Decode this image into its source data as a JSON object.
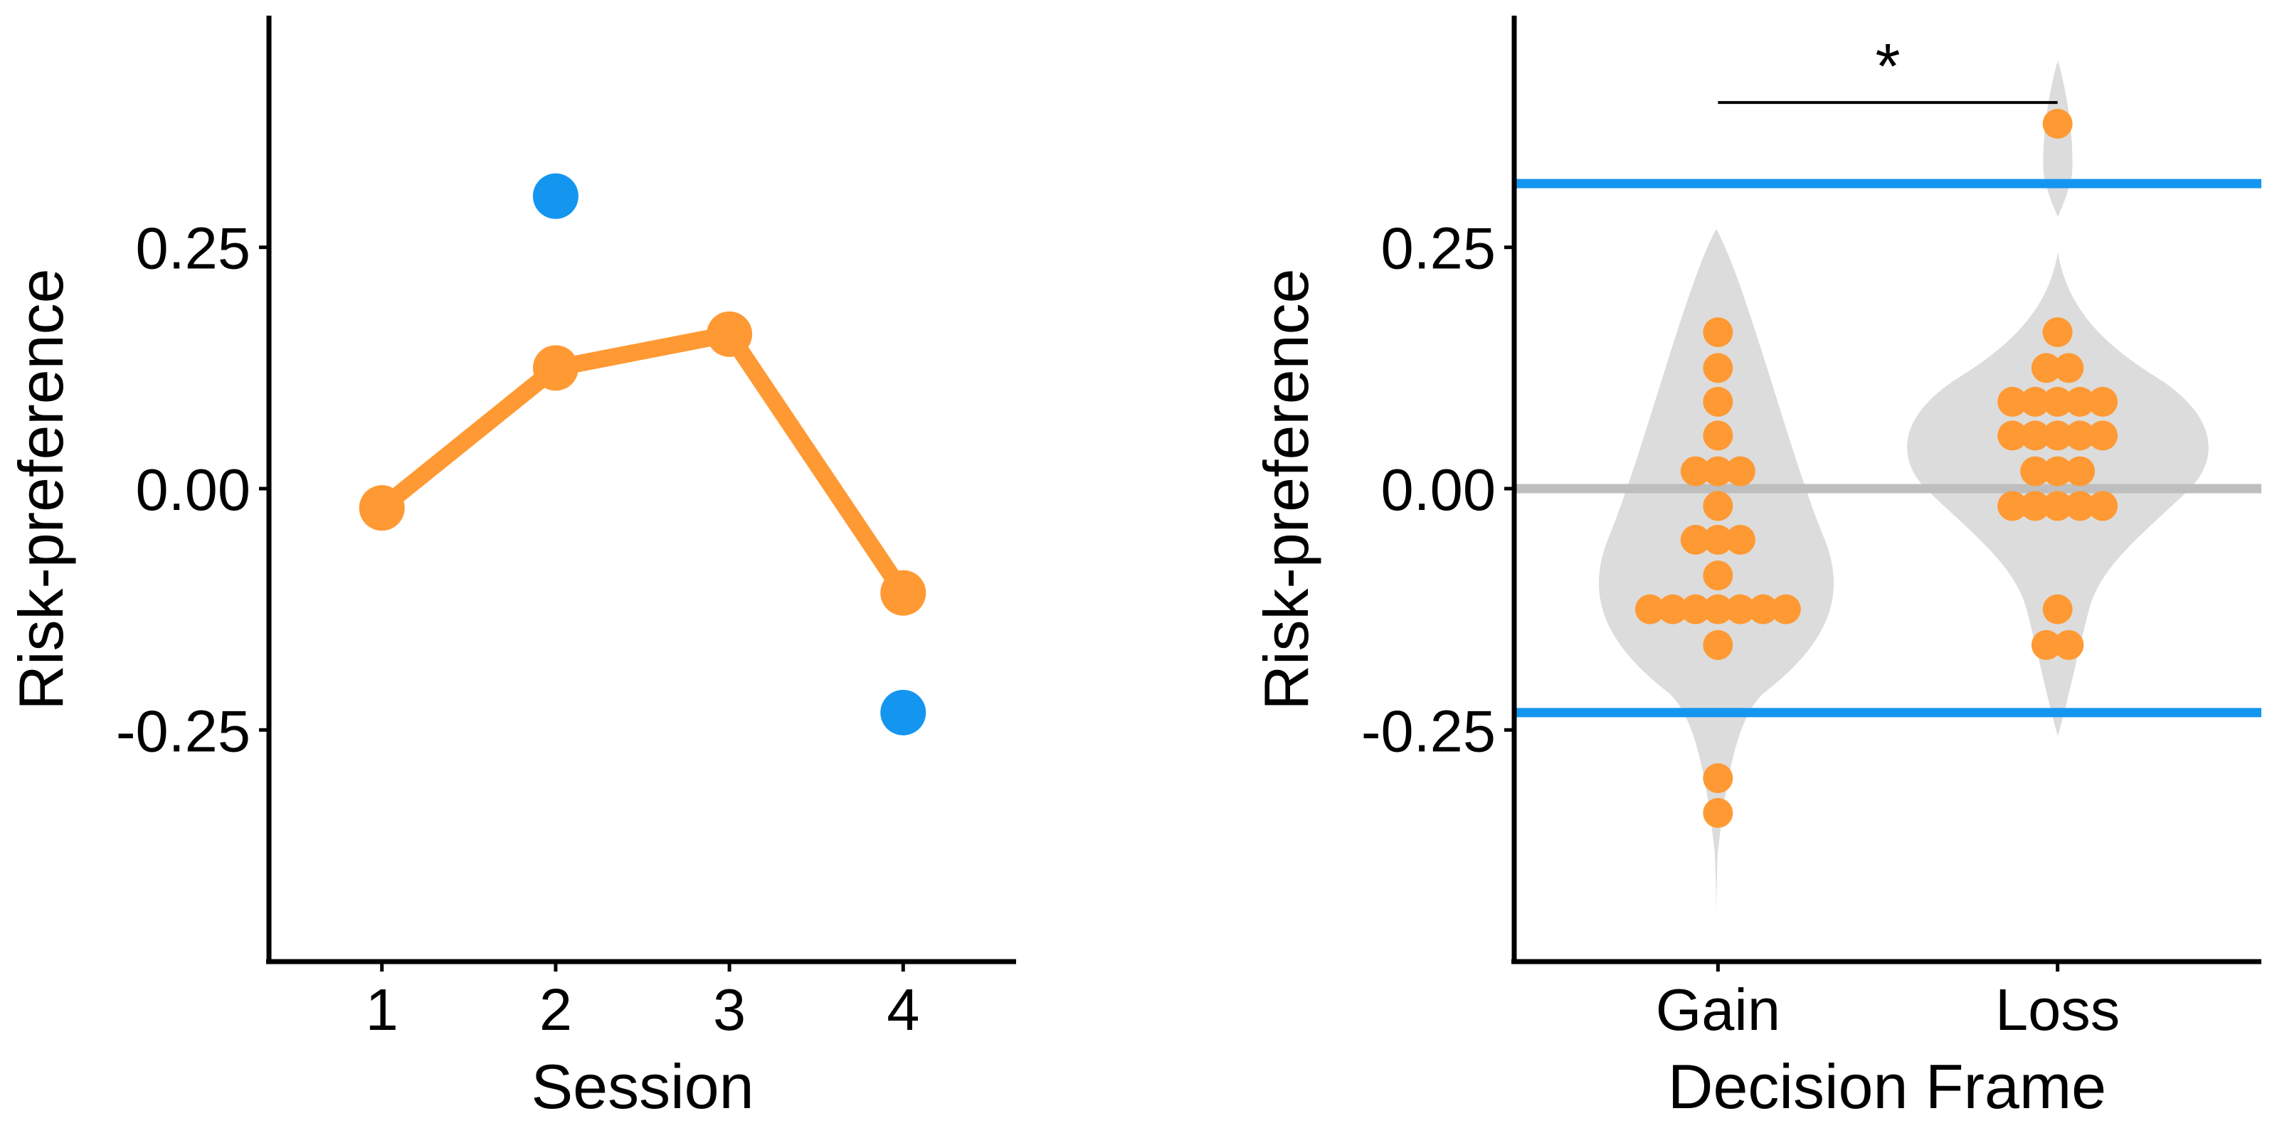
{
  "colors": {
    "orange": "#FF9933",
    "blue": "#1496F0",
    "violin": "#DCDCDC",
    "zero_line": "#BEBEBE",
    "axis": "#000000"
  },
  "chart_data": [
    {
      "type": "line",
      "xlabel": "Session",
      "ylabel": "Risk-preference",
      "x": [
        1,
        2,
        3,
        4
      ],
      "x_tick_labels": [
        "1",
        "2",
        "3",
        "4"
      ],
      "xlim": [
        0.35,
        4.65
      ],
      "y_ticks": [
        0.25,
        0.0,
        -0.25
      ],
      "y_tick_labels": [
        "0.25",
        "0.00",
        "-0.25"
      ],
      "ylim": [
        -0.49,
        0.49
      ],
      "series": [
        {
          "color": "#FF9933",
          "values": [
            -0.02,
            0.125,
            0.16,
            -0.108
          ],
          "style": "line+markers"
        },
        {
          "color": "#1496F0",
          "points": [
            [
              2,
              0.303
            ],
            [
              4,
              -0.232
            ]
          ],
          "style": "markers"
        }
      ],
      "grid": false,
      "legend": "none"
    },
    {
      "type": "scatter",
      "subtype": "violin+dotplot",
      "xlabel": "Decision Frame",
      "ylabel": "Risk-preference",
      "categories": [
        "Gain",
        "Loss"
      ],
      "xlim": [
        0.4,
        2.6
      ],
      "y_ticks": [
        0.25,
        0.0,
        -0.25
      ],
      "y_tick_labels": [
        "0.25",
        "0.00",
        "-0.25"
      ],
      "ylim": [
        -0.49,
        0.49
      ],
      "reference_lines": [
        {
          "y": 0.316,
          "color": "#1496F0"
        },
        {
          "y": 0.0,
          "color": "#BEBEBE"
        },
        {
          "y": -0.232,
          "color": "#1496F0"
        }
      ],
      "groups": [
        {
          "category": "Gain",
          "points": [
            [
              1,
              0.162
            ],
            [
              1,
              0.125
            ],
            [
              1,
              0.09
            ],
            [
              1,
              0.055
            ],
            [
              0.934,
              0.018
            ],
            [
              1,
              0.018
            ],
            [
              1.066,
              0.018
            ],
            [
              1,
              -0.018
            ],
            [
              0.934,
              -0.053
            ],
            [
              1,
              -0.053
            ],
            [
              1.066,
              -0.053
            ],
            [
              1,
              -0.09
            ],
            [
              0.8,
              -0.125
            ],
            [
              0.867,
              -0.125
            ],
            [
              0.934,
              -0.125
            ],
            [
              1,
              -0.125
            ],
            [
              1.066,
              -0.125
            ],
            [
              1.133,
              -0.125
            ],
            [
              1.2,
              -0.125
            ],
            [
              1,
              -0.162
            ],
            [
              1,
              -0.3
            ],
            [
              1,
              -0.336
            ]
          ]
        },
        {
          "category": "Loss",
          "points": [
            [
              2,
              0.378
            ],
            [
              2,
              0.162
            ],
            [
              1.967,
              0.125
            ],
            [
              2.033,
              0.125
            ],
            [
              1.867,
              0.09
            ],
            [
              1.934,
              0.09
            ],
            [
              2,
              0.09
            ],
            [
              2.066,
              0.09
            ],
            [
              2.133,
              0.09
            ],
            [
              1.867,
              0.055
            ],
            [
              1.934,
              0.055
            ],
            [
              2,
              0.055
            ],
            [
              2.066,
              0.055
            ],
            [
              2.133,
              0.055
            ],
            [
              1.934,
              0.018
            ],
            [
              2,
              0.018
            ],
            [
              2.066,
              0.018
            ],
            [
              1.867,
              -0.018
            ],
            [
              1.934,
              -0.018
            ],
            [
              2,
              -0.018
            ],
            [
              2.066,
              -0.018
            ],
            [
              2.133,
              -0.018
            ],
            [
              2,
              -0.125
            ],
            [
              1.967,
              -0.162
            ],
            [
              2.033,
              -0.162
            ]
          ]
        }
      ],
      "annotation": {
        "text": "*",
        "bracket_from": "Gain",
        "bracket_to": "Loss",
        "y": 0.4
      },
      "grid": false,
      "legend": "none"
    }
  ]
}
